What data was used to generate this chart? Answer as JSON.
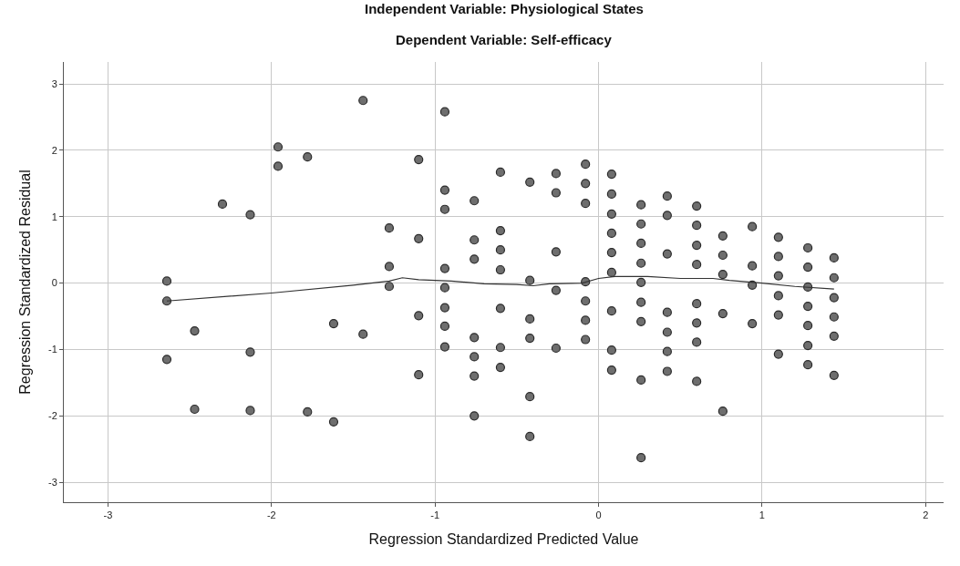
{
  "chart_data": {
    "type": "scatter",
    "title": "Independent Variable: Physiological States",
    "subtitle": "Dependent Variable: Self-efficacy",
    "xlabel": "Regression Standardized Predicted Value",
    "ylabel": "Regression Standardized Residual",
    "xlim": [
      -3.27,
      2.11
    ],
    "xticks": [
      -3,
      -2,
      -1,
      0,
      1,
      2
    ],
    "ylim": [
      -3.3,
      3.33
    ],
    "yticks": [
      -3,
      -2,
      -1,
      0,
      1,
      2,
      3
    ],
    "grid": true,
    "legend": false,
    "series": [
      {
        "marker": "circle",
        "color": "#6e6e6e",
        "x": [
          -2.64,
          -2.64,
          -2.64,
          -2.47,
          -2.47,
          -2.3,
          -2.13,
          -2.13,
          -2.13,
          -1.96,
          -1.96,
          -1.78,
          -1.78,
          -1.62,
          -1.62,
          -1.44,
          -1.44,
          -1.28,
          -1.28,
          -1.28,
          -1.1,
          -1.1,
          -1.1,
          -1.1,
          -0.94,
          -0.94,
          -0.94,
          -0.94,
          -0.94,
          -0.94,
          -0.94,
          -0.94,
          -0.76,
          -0.76,
          -0.76,
          -0.76,
          -0.76,
          -0.76,
          -0.76,
          -0.6,
          -0.6,
          -0.6,
          -0.6,
          -0.6,
          -0.6,
          -0.6,
          -0.42,
          -0.42,
          -0.42,
          -0.42,
          -0.42,
          -0.42,
          -0.26,
          -0.26,
          -0.26,
          -0.26,
          -0.26,
          -0.08,
          -0.08,
          -0.08,
          -0.08,
          -0.08,
          -0.08,
          -0.08,
          0.08,
          0.08,
          0.08,
          0.08,
          0.08,
          0.08,
          0.08,
          0.08,
          0.08,
          0.26,
          0.26,
          0.26,
          0.26,
          0.26,
          0.26,
          0.26,
          0.26,
          0.26,
          0.42,
          0.42,
          0.42,
          0.42,
          0.42,
          0.42,
          0.42,
          0.6,
          0.6,
          0.6,
          0.6,
          0.6,
          0.6,
          0.6,
          0.6,
          0.76,
          0.76,
          0.76,
          0.76,
          0.76,
          0.94,
          0.94,
          0.94,
          0.94,
          1.1,
          1.1,
          1.1,
          1.1,
          1.1,
          1.1,
          1.28,
          1.28,
          1.28,
          1.28,
          1.28,
          1.28,
          1.28,
          1.44,
          1.44,
          1.44,
          1.44,
          1.44,
          1.44
        ],
        "values": [
          0.03,
          -0.27,
          -1.15,
          -0.72,
          -1.9,
          1.19,
          1.03,
          -1.04,
          -1.92,
          2.05,
          1.76,
          1.9,
          -1.94,
          -0.61,
          -2.09,
          2.75,
          -0.77,
          0.83,
          0.25,
          -0.05,
          1.86,
          0.67,
          -0.49,
          -1.38,
          2.58,
          1.4,
          1.11,
          0.22,
          -0.07,
          -0.37,
          -0.65,
          -0.96,
          1.24,
          0.65,
          0.36,
          -0.82,
          -1.11,
          -1.4,
          -2.0,
          1.67,
          0.79,
          0.5,
          0.2,
          -0.38,
          -0.97,
          -1.27,
          1.52,
          0.04,
          -0.54,
          -0.83,
          -1.71,
          -2.31,
          1.65,
          1.36,
          0.47,
          -0.11,
          -0.98,
          1.79,
          1.5,
          1.2,
          0.02,
          -0.27,
          -0.56,
          -0.85,
          1.64,
          1.34,
          1.04,
          0.75,
          0.46,
          0.16,
          -0.42,
          -1.01,
          -1.31,
          1.18,
          0.89,
          0.6,
          0.3,
          0.01,
          -0.29,
          -0.58,
          -1.46,
          -2.63,
          1.31,
          1.02,
          0.44,
          -0.44,
          -0.74,
          -1.03,
          -1.33,
          1.16,
          0.87,
          0.57,
          0.28,
          -0.31,
          -0.6,
          -0.89,
          -1.48,
          0.71,
          0.42,
          0.13,
          -0.46,
          -1.93,
          0.85,
          0.26,
          -0.03,
          -0.61,
          0.69,
          0.4,
          0.11,
          -0.19,
          -0.48,
          -1.07,
          0.53,
          0.24,
          -0.06,
          -0.35,
          -0.64,
          -0.94,
          -1.23,
          0.38,
          0.08,
          -0.22,
          -0.51,
          -0.8,
          -1.39
        ]
      },
      {
        "type": "line",
        "color": "#333333",
        "x": [
          -2.64,
          -2.0,
          -1.5,
          -1.28,
          -1.2,
          -1.1,
          -0.9,
          -0.7,
          -0.5,
          -0.4,
          -0.3,
          -0.1,
          0.0,
          0.1,
          0.3,
          0.5,
          0.7,
          0.8,
          1.0,
          1.2,
          1.44
        ],
        "values": [
          -0.27,
          -0.15,
          -0.03,
          0.03,
          0.08,
          0.05,
          0.03,
          -0.01,
          -0.02,
          -0.04,
          -0.01,
          0.0,
          0.07,
          0.1,
          0.1,
          0.07,
          0.07,
          0.04,
          0.0,
          -0.05,
          -0.09
        ]
      }
    ]
  }
}
